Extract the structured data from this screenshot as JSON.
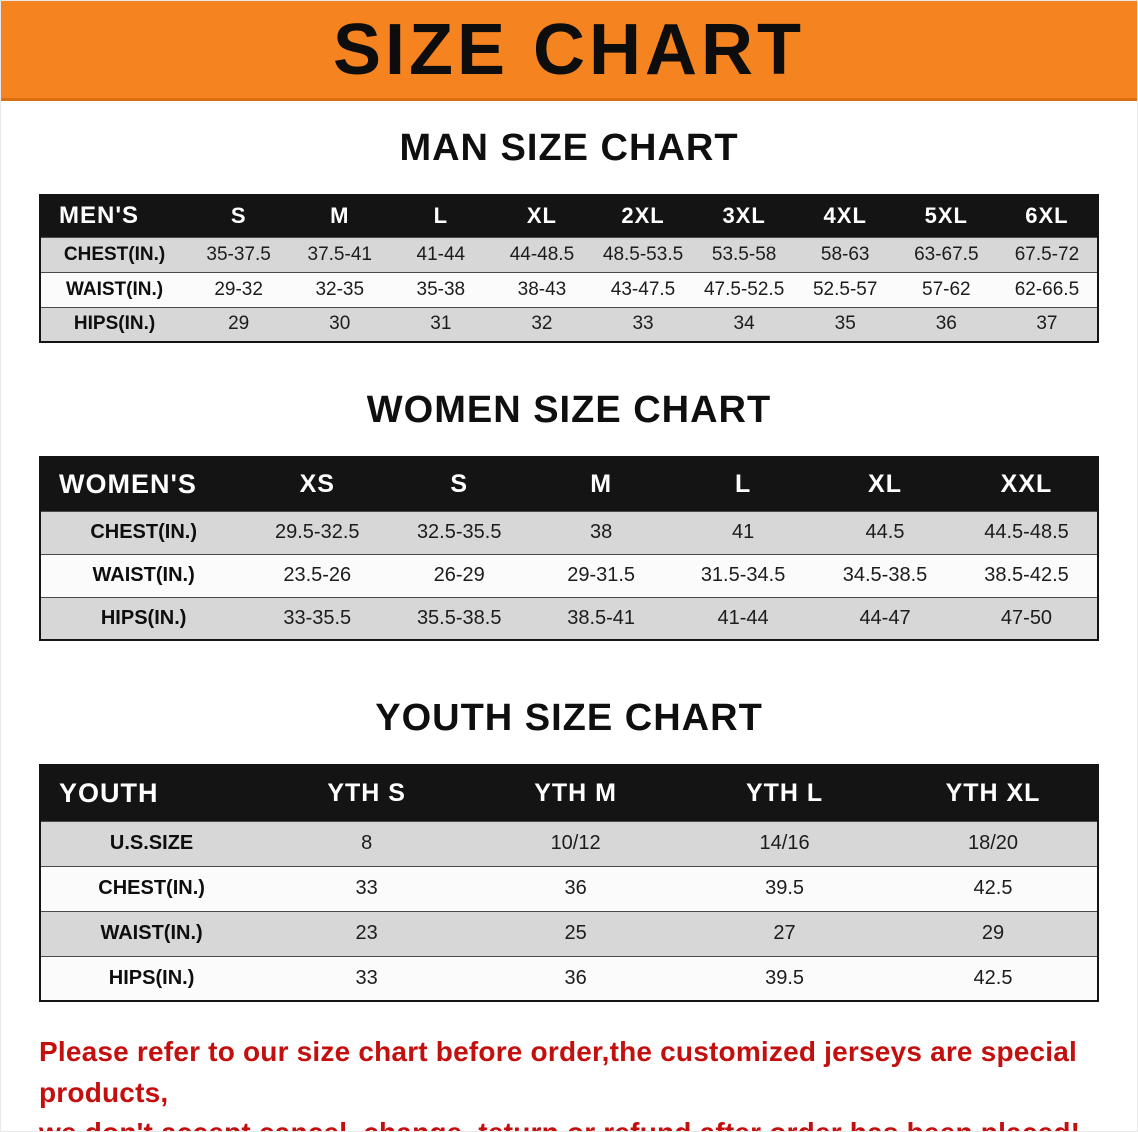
{
  "banner": {
    "title": "SIZE CHART"
  },
  "colors": {
    "banner_orange": "#F5831F",
    "table_header_black": "#141414",
    "row_gray": "#d7d7d7",
    "row_white": "#fbfbfb",
    "disclaimer_red": "#C40F0F"
  },
  "men": {
    "heading": "MAN SIZE CHART",
    "header": [
      "MEN'S",
      "S",
      "M",
      "L",
      "XL",
      "2XL",
      "3XL",
      "4XL",
      "5XL",
      "6XL"
    ],
    "rows": [
      [
        "CHEST(IN.)",
        "35-37.5",
        "37.5-41",
        "41-44",
        "44-48.5",
        "48.5-53.5",
        "53.5-58",
        "58-63",
        "63-67.5",
        "67.5-72"
      ],
      [
        "WAIST(IN.)",
        "29-32",
        "32-35",
        "35-38",
        "38-43",
        "43-47.5",
        "47.5-52.5",
        "52.5-57",
        "57-62",
        "62-66.5"
      ],
      [
        "HIPS(IN.)",
        "29",
        "30",
        "31",
        "32",
        "33",
        "34",
        "35",
        "36",
        "37"
      ]
    ]
  },
  "women": {
    "heading": "WOMEN SIZE CHART",
    "header": [
      "WOMEN'S",
      "XS",
      "S",
      "M",
      "L",
      "XL",
      "XXL"
    ],
    "rows": [
      [
        "CHEST(IN.)",
        "29.5-32.5",
        "32.5-35.5",
        "38",
        "41",
        "44.5",
        "44.5-48.5"
      ],
      [
        "WAIST(IN.)",
        "23.5-26",
        "26-29",
        "29-31.5",
        "31.5-34.5",
        "34.5-38.5",
        "38.5-42.5"
      ],
      [
        "HIPS(IN.)",
        "33-35.5",
        "35.5-38.5",
        "38.5-41",
        "41-44",
        "44-47",
        "47-50"
      ]
    ]
  },
  "youth": {
    "heading": "YOUTH SIZE CHART",
    "header": [
      "YOUTH",
      "YTH S",
      "YTH M",
      "YTH L",
      "YTH XL"
    ],
    "rows": [
      [
        "U.S.SIZE",
        "8",
        "10/12",
        "14/16",
        "18/20"
      ],
      [
        "CHEST(IN.)",
        "33",
        "36",
        "39.5",
        "42.5"
      ],
      [
        "WAIST(IN.)",
        "23",
        "25",
        "27",
        "29"
      ],
      [
        "HIPS(IN.)",
        "33",
        "36",
        "39.5",
        "42.5"
      ]
    ]
  },
  "disclaimer": {
    "line1": "Please refer to our size chart before order,the customized jerseys are special products,",
    "line2": "we don't accept cancel, change, teturn or refund after order has been placed!"
  }
}
